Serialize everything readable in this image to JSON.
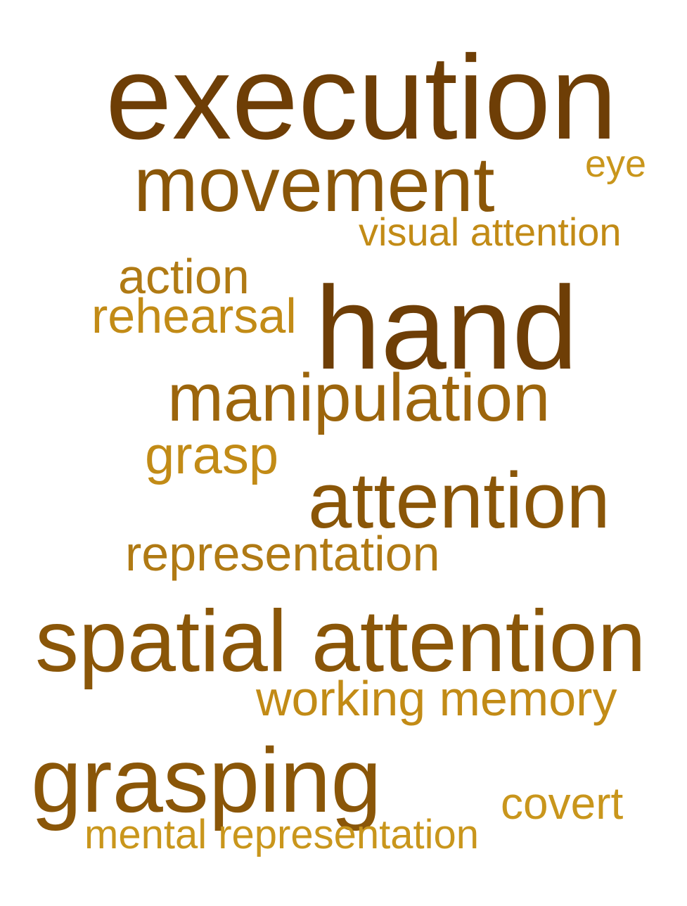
{
  "words": [
    {
      "id": "execution",
      "text": "execution",
      "color": "#6e3e06"
    },
    {
      "id": "movement",
      "text": "movement",
      "color": "#8a5608"
    },
    {
      "id": "eye",
      "text": "eye",
      "color": "#c9961c"
    },
    {
      "id": "visual-attention",
      "text": "visual attention",
      "color": "#c28b16"
    },
    {
      "id": "action",
      "text": "action",
      "color": "#b07a14"
    },
    {
      "id": "hand",
      "text": "hand",
      "color": "#6e3e06"
    },
    {
      "id": "rehearsal",
      "text": "rehearsal",
      "color": "#c28b16"
    },
    {
      "id": "manipulation",
      "text": "manipulation",
      "color": "#9c650c"
    },
    {
      "id": "grasp",
      "text": "grasp",
      "color": "#c28b16"
    },
    {
      "id": "attention",
      "text": "attention",
      "color": "#8a5608"
    },
    {
      "id": "representation",
      "text": "representation",
      "color": "#b07a14"
    },
    {
      "id": "spatial-attention",
      "text": "spatial attention",
      "color": "#8a5608"
    },
    {
      "id": "working-memory",
      "text": "working memory",
      "color": "#c28b16"
    },
    {
      "id": "grasping",
      "text": "grasping",
      "color": "#8a5608"
    },
    {
      "id": "covert",
      "text": "covert",
      "color": "#c9961c"
    },
    {
      "id": "mental-representation",
      "text": "mental representation",
      "color": "#c9961c"
    }
  ]
}
